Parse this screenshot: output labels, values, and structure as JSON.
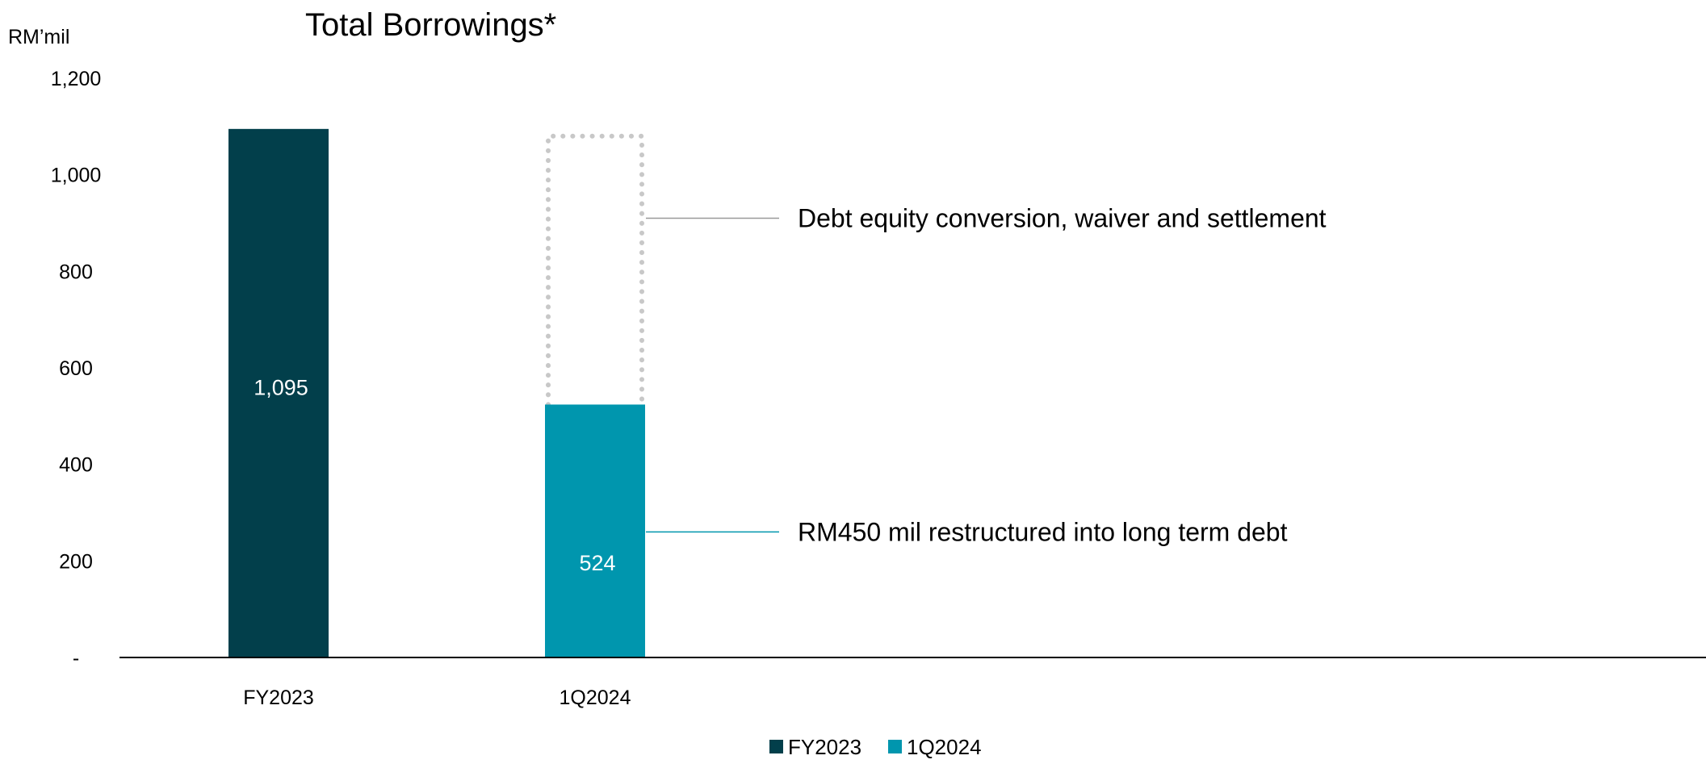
{
  "chart_data": {
    "type": "bar",
    "title": "Total Borrowings*",
    "unit_label": "RM’mil",
    "categories": [
      "FY2023",
      "1Q2024"
    ],
    "series": [
      {
        "name": "FY2023",
        "values": [
          1095,
          null
        ],
        "color": "#023F4B"
      },
      {
        "name": "1Q2024",
        "values": [
          null,
          524
        ],
        "color": "#0096AE"
      }
    ],
    "data_labels": [
      "1,095",
      "524"
    ],
    "ghost_bar": {
      "category": "1Q2024",
      "value": 1080,
      "style": "dotted-outline"
    },
    "ylim": [
      0,
      1200
    ],
    "yticks": [
      {
        "value": 0,
        "label": "-"
      },
      {
        "value": 200,
        "label": "200"
      },
      {
        "value": 400,
        "label": "400"
      },
      {
        "value": 600,
        "label": "600"
      },
      {
        "value": 800,
        "label": "800"
      },
      {
        "value": 1000,
        "label": "1,000"
      },
      {
        "value": 1200,
        "label": "1,200"
      }
    ],
    "annotations": [
      {
        "text": "Debt equity conversion, waiver and settlement",
        "value": 910
      },
      {
        "text": "RM450 mil restructured into long term debt",
        "value": 260
      }
    ],
    "legend": {
      "position": "bottom-center",
      "entries": [
        "FY2023",
        "1Q2024"
      ]
    },
    "grid": false
  }
}
